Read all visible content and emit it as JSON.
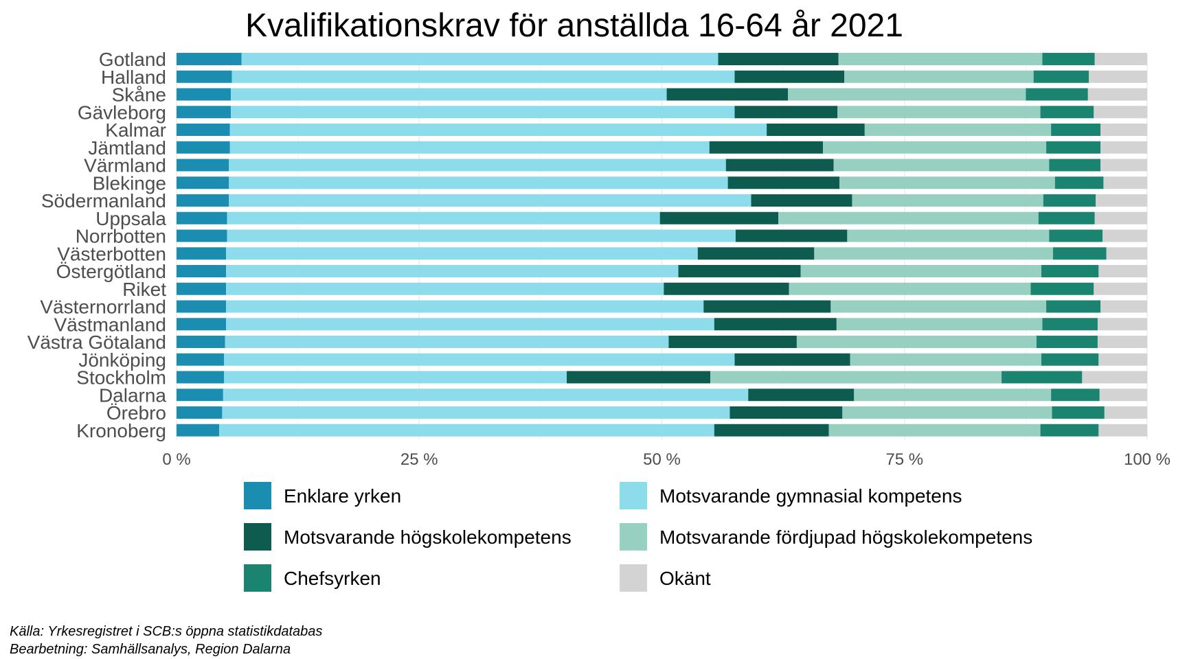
{
  "chart_data": {
    "type": "bar",
    "orientation": "horizontal",
    "stacked": true,
    "title": "Kvalifikationskrav för anställda 16-64 år 2021",
    "xlim": [
      0,
      100
    ],
    "x_ticks": [
      "0 %",
      "25 %",
      "50 %",
      "75 %",
      "100 %"
    ],
    "grid": true,
    "legend_position": "bottom",
    "categories": [
      "Gotland",
      "Halland",
      "Skåne",
      "Gävleborg",
      "Kalmar",
      "Jämtland",
      "Värmland",
      "Blekinge",
      "Södermanland",
      "Uppsala",
      "Norrbotten",
      "Västerbotten",
      "Östergötland",
      "Riket",
      "Västernorrland",
      "Västmanland",
      "Västra Götaland",
      "Jönköping",
      "Stockholm",
      "Dalarna",
      "Örebro",
      "Kronoberg"
    ],
    "series": [
      {
        "name": "Enklare yrken",
        "color": "#1a8db0",
        "values": [
          6.7,
          5.7,
          5.6,
          5.6,
          5.5,
          5.5,
          5.4,
          5.4,
          5.4,
          5.2,
          5.2,
          5.1,
          5.1,
          5.1,
          5.1,
          5.1,
          5.0,
          4.9,
          4.9,
          4.8,
          4.7,
          4.4
        ]
      },
      {
        "name": "Motsvarande gymnasial kompetens",
        "color": "#8ddcec",
        "values": [
          49.1,
          51.8,
          44.9,
          51.9,
          55.3,
          49.4,
          51.2,
          51.4,
          53.8,
          44.6,
          52.4,
          48.6,
          46.6,
          45.1,
          49.2,
          50.3,
          45.7,
          52.6,
          35.3,
          54.1,
          52.3,
          51.0
        ]
      },
      {
        "name": "Motsvarande högskolekompetens",
        "color": "#0d5c4f",
        "values": [
          12.4,
          11.3,
          12.5,
          10.6,
          10.1,
          11.7,
          11.1,
          11.5,
          10.4,
          12.2,
          11.5,
          12.0,
          12.6,
          12.9,
          13.1,
          12.6,
          13.2,
          11.9,
          14.8,
          10.9,
          11.6,
          11.8
        ]
      },
      {
        "name": "Motsvarande fördjupad högskolekompetens",
        "color": "#97d0c0",
        "values": [
          21.0,
          19.5,
          24.5,
          20.9,
          19.2,
          23.0,
          22.2,
          22.2,
          19.7,
          26.8,
          20.8,
          24.6,
          24.8,
          24.9,
          22.2,
          21.2,
          24.7,
          19.7,
          30.0,
          20.3,
          21.6,
          21.8
        ]
      },
      {
        "name": "Chefsyrken",
        "color": "#1b8470",
        "values": [
          5.4,
          5.7,
          6.4,
          5.5,
          5.1,
          5.6,
          5.3,
          5.0,
          5.4,
          5.8,
          5.5,
          5.5,
          5.9,
          6.5,
          5.6,
          5.7,
          6.3,
          5.9,
          8.3,
          5.0,
          5.4,
          6.0
        ]
      },
      {
        "name": "Okänt",
        "color": "#d3d3d3",
        "values": [
          5.4,
          6.0,
          6.1,
          5.5,
          4.8,
          4.8,
          4.8,
          4.5,
          5.3,
          5.4,
          4.6,
          4.2,
          5.0,
          5.5,
          4.8,
          5.1,
          5.1,
          5.0,
          6.7,
          4.9,
          4.4,
          5.0
        ]
      }
    ],
    "source_lines": [
      "Källa: Yrkesregistret i SCB:s öppna statistikdatabas",
      "Bearbetning: Samhällsanalys, Region Dalarna"
    ]
  }
}
